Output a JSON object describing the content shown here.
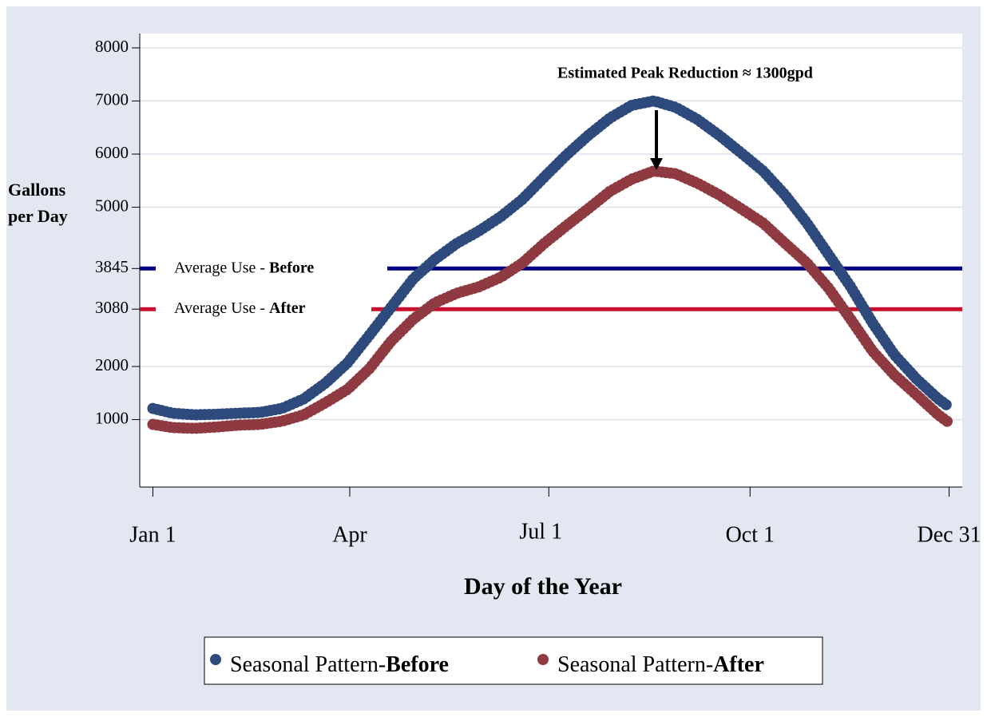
{
  "chart_data": {
    "type": "line",
    "xlabel": "Day of the Year",
    "ylabel": [
      "Gallons",
      "per Day"
    ],
    "annotation": "Estimated Peak Reduction ≈ 1300gpd",
    "x": [
      1,
      10,
      20,
      30,
      40,
      50,
      60,
      70,
      80,
      90,
      100,
      110,
      120,
      130,
      140,
      150,
      160,
      170,
      180,
      190,
      200,
      210,
      220,
      230,
      240,
      250,
      260,
      270,
      280,
      290,
      300,
      310,
      320,
      330,
      340,
      350,
      360,
      365
    ],
    "series": [
      {
        "name": [
          "Seasonal Pattern-",
          "Before"
        ],
        "color": "#2e4a7d",
        "values": [
          1210,
          1120,
          1090,
          1100,
          1120,
          1135,
          1210,
          1390,
          1690,
          2070,
          2590,
          3120,
          3650,
          4020,
          4320,
          4550,
          4820,
          5150,
          5570,
          5980,
          6350,
          6680,
          6920,
          7000,
          6880,
          6650,
          6350,
          6020,
          5680,
          5230,
          4700,
          4100,
          3500,
          2820,
          2220,
          1770,
          1390,
          1240
        ]
      },
      {
        "name": [
          "Seasonal Pattern-",
          "After"
        ],
        "color": "#8f3a40",
        "values": [
          910,
          850,
          835,
          860,
          895,
          910,
          970,
          1090,
          1320,
          1570,
          1960,
          2480,
          2890,
          3200,
          3380,
          3500,
          3680,
          3950,
          4320,
          4650,
          4970,
          5300,
          5530,
          5680,
          5630,
          5450,
          5230,
          4970,
          4700,
          4320,
          3950,
          3470,
          2890,
          2290,
          1840,
          1470,
          1090,
          940
        ]
      }
    ],
    "reference_lines": [
      {
        "value": 3845,
        "color": "#000080",
        "label": [
          "Average Use - ",
          "Before"
        ]
      },
      {
        "value": 3080,
        "color": "#c8102e",
        "label": [
          "Average Use - ",
          "After"
        ]
      }
    ],
    "xlim": [
      -5,
      371
    ],
    "xticks": [
      {
        "value": 1,
        "label": "Jan 1"
      },
      {
        "value": 91,
        "label": "Apr"
      },
      {
        "value": 182,
        "label": "Jul 1"
      },
      {
        "value": 274,
        "label": "Oct 1"
      },
      {
        "value": 365,
        "label": "Dec 31"
      }
    ],
    "ylim": [
      -270,
      8270
    ],
    "yticks": [
      1000,
      2000,
      3080,
      3845,
      5000,
      6000,
      7000,
      8000
    ],
    "grid": true
  }
}
